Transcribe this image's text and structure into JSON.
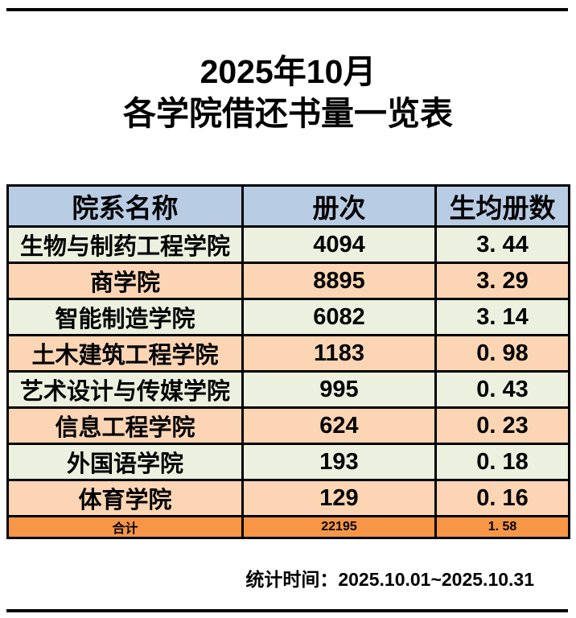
{
  "title": {
    "line1": "2025年10月",
    "line2": "各学院借还书量一览表"
  },
  "table": {
    "columns": [
      "院系名称",
      "册次",
      "生均册数"
    ],
    "rows": [
      {
        "name": "生物与制药工程学院",
        "volumes": "4094",
        "per_student": "3. 44"
      },
      {
        "name": "商学院",
        "volumes": "8895",
        "per_student": "3. 29"
      },
      {
        "name": "智能制造学院",
        "volumes": "6082",
        "per_student": "3. 14"
      },
      {
        "name": "土木建筑工程学院",
        "volumes": "1183",
        "per_student": "0. 98"
      },
      {
        "name": "艺术设计与传媒学院",
        "volumes": "995",
        "per_student": "0. 43"
      },
      {
        "name": "信息工程学院",
        "volumes": "624",
        "per_student": "0. 23"
      },
      {
        "name": "外国语学院",
        "volumes": "193",
        "per_student": "0. 18"
      },
      {
        "name": "体育学院",
        "volumes": "129",
        "per_student": "0. 16"
      }
    ],
    "total": {
      "name": "合计",
      "volumes": "22195",
      "per_student": "1. 58"
    },
    "colors": {
      "header_bg": "#b8cce4",
      "row_green_bg": "#ebf1de",
      "row_orange_bg": "#fcd5b4",
      "total_bg": "#f79646",
      "border": "#000000",
      "text": "#000000"
    }
  },
  "footer": {
    "text": "统计时间：2025.10.01~2025.10.31"
  }
}
